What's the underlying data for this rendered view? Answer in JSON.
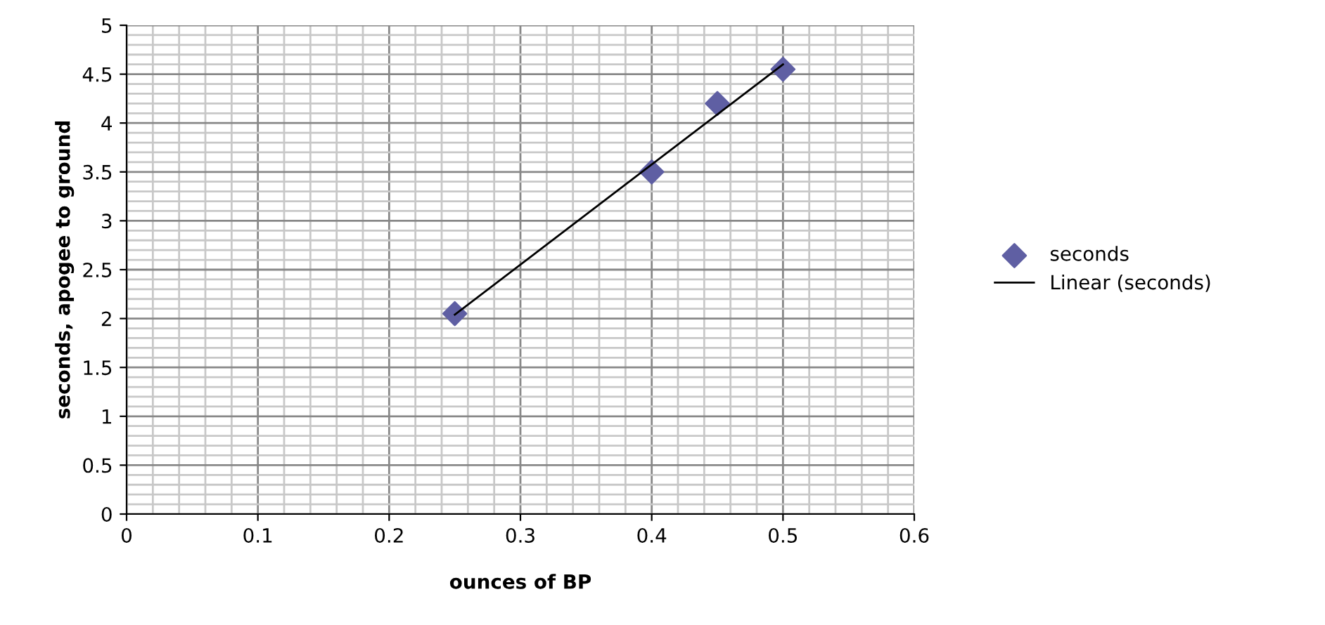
{
  "chart_data": {
    "type": "scatter",
    "xlabel": "ounces of BP",
    "ylabel": "seconds, apogee to ground",
    "series": [
      {
        "name": "seconds",
        "color": "#5f5fa3",
        "marker": "diamond",
        "x": [
          0.25,
          0.4,
          0.45,
          0.5
        ],
        "values": [
          2.05,
          3.5,
          4.2,
          4.55
        ]
      },
      {
        "name": "Linear (seconds)",
        "type": "line",
        "color": "#000000",
        "marker": "none",
        "line_style": "solid",
        "x": [
          0.25,
          0.5
        ],
        "values": [
          2.04,
          4.6
        ]
      }
    ],
    "xlim": [
      0,
      0.6
    ],
    "xticks": [
      0,
      0.1,
      0.2,
      0.3,
      0.4,
      0.5,
      0.6
    ],
    "ylim": [
      0,
      5
    ],
    "yticks": [
      0,
      0.5,
      1,
      1.5,
      2,
      2.5,
      3,
      3.5,
      4,
      4.5,
      5
    ],
    "grid": true,
    "legend": "right"
  }
}
